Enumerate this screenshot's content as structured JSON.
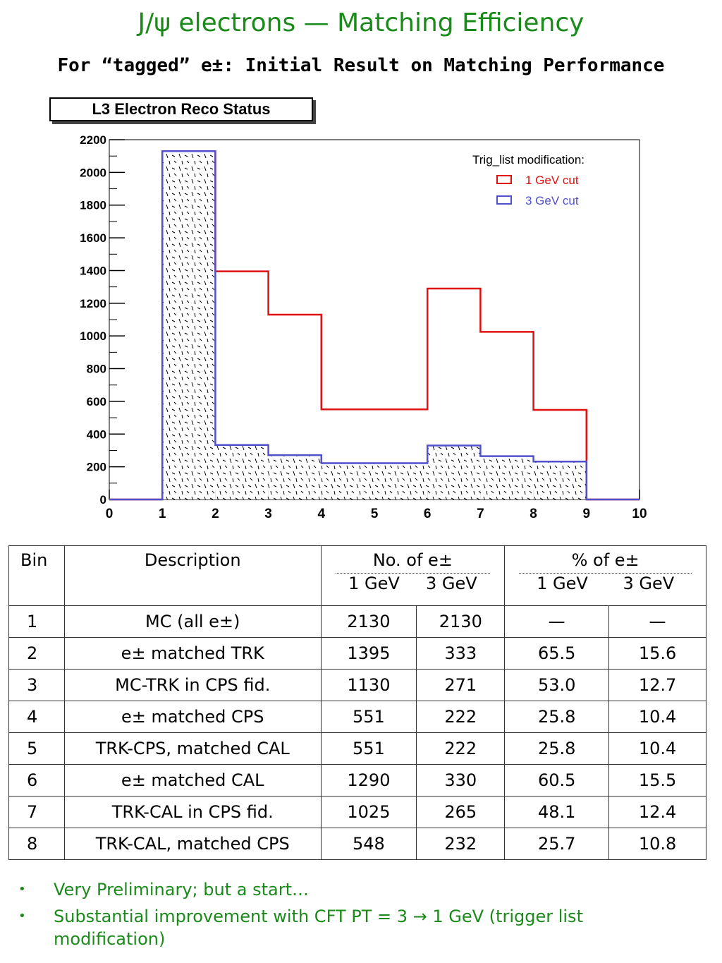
{
  "header": {
    "title": "J/ψ electrons — Matching Efficiency",
    "subtitle": "For “tagged” e±: Initial Result on Matching Performance"
  },
  "chart_data": {
    "type": "bar",
    "title": "L3 Electron Reco Status",
    "legend_title": "Trig_list modification:",
    "legend_position": "top-right",
    "x_ticks": [
      "0",
      "1",
      "2",
      "3",
      "4",
      "5",
      "6",
      "7",
      "8",
      "9",
      "10"
    ],
    "y_ticks": [
      "0",
      "200",
      "400",
      "600",
      "800",
      "1000",
      "1200",
      "1400",
      "1600",
      "1800",
      "2000",
      "2200"
    ],
    "xlim": [
      0,
      10
    ],
    "ylim": [
      0,
      2200
    ],
    "bin_edges": [
      1,
      2,
      3,
      4,
      5,
      6,
      7,
      8,
      9
    ],
    "series": [
      {
        "name": "1 GeV cut",
        "color": "#e01010",
        "values": [
          2130,
          1395,
          1130,
          551,
          551,
          1290,
          1025,
          548
        ]
      },
      {
        "name": "3 GeV cut",
        "color": "#5050cc",
        "values": [
          2130,
          333,
          271,
          222,
          222,
          330,
          265,
          232
        ]
      }
    ],
    "grid": false
  },
  "table": {
    "headers": {
      "bin": "Bin",
      "description": "Description",
      "count": "No. of e±",
      "percent": "% of e±",
      "sub": [
        "1 GeV",
        "3 GeV",
        "1 GeV",
        "3 GeV"
      ]
    },
    "rows": [
      {
        "bin": "1",
        "desc": "MC (all e±)",
        "n1": "2130",
        "n3": "2130",
        "p1": "—",
        "p3": "—"
      },
      {
        "bin": "2",
        "desc": "e± matched TRK",
        "n1": "1395",
        "n3": "333",
        "p1": "65.5",
        "p3": "15.6"
      },
      {
        "bin": "3",
        "desc": "MC-TRK in CPS fid.",
        "n1": "1130",
        "n3": "271",
        "p1": "53.0",
        "p3": "12.7"
      },
      {
        "bin": "4",
        "desc": "e± matched CPS",
        "n1": "551",
        "n3": "222",
        "p1": "25.8",
        "p3": "10.4"
      },
      {
        "bin": "5",
        "desc": "TRK-CPS, matched CAL",
        "n1": "551",
        "n3": "222",
        "p1": "25.8",
        "p3": "10.4"
      },
      {
        "bin": "6",
        "desc": "e± matched CAL",
        "n1": "1290",
        "n3": "330",
        "p1": "60.5",
        "p3": "15.5"
      },
      {
        "bin": "7",
        "desc": "TRK-CAL in CPS fid.",
        "n1": "1025",
        "n3": "265",
        "p1": "48.1",
        "p3": "12.4"
      },
      {
        "bin": "8",
        "desc": "TRK-CAL, matched CPS",
        "n1": "548",
        "n3": "232",
        "p1": "25.7",
        "p3": "10.8"
      }
    ]
  },
  "bullets": [
    "Very Preliminary;  but a start…",
    "Substantial improvement with CFT PT = 3 → 1 GeV  (trigger list modification)"
  ]
}
